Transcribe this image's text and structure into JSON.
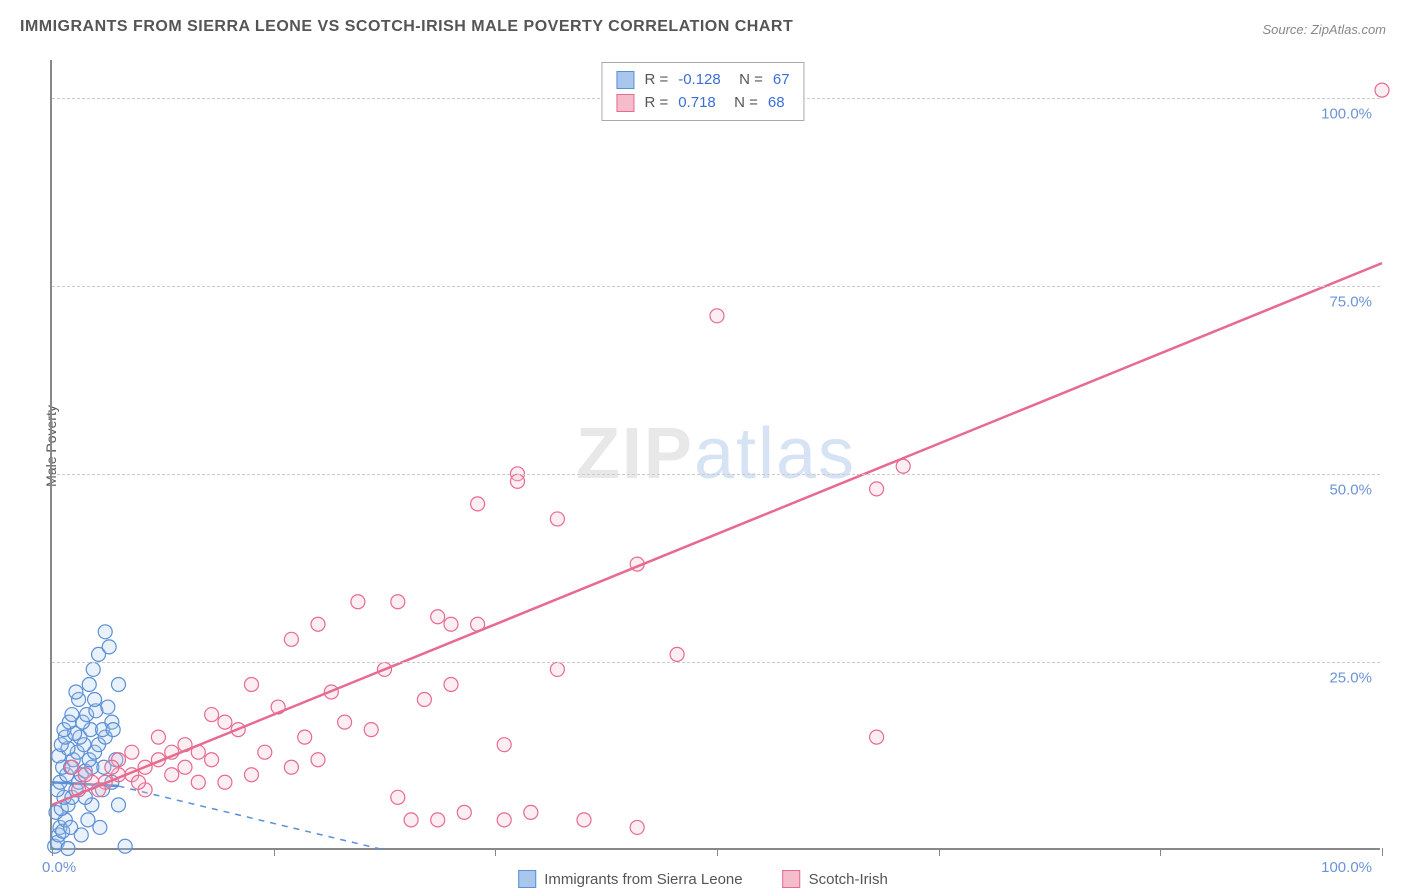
{
  "title": "IMMIGRANTS FROM SIERRA LEONE VS SCOTCH-IRISH MALE POVERTY CORRELATION CHART",
  "source": "Source: ZipAtlas.com",
  "ylabel": "Male Poverty",
  "watermark_a": "ZIP",
  "watermark_b": "atlas",
  "chart": {
    "type": "scatter",
    "xlim": [
      0,
      100
    ],
    "ylim": [
      0,
      105
    ],
    "yticks": [
      25,
      50,
      75,
      100
    ],
    "ytick_labels": [
      "25.0%",
      "50.0%",
      "75.0%",
      "100.0%"
    ],
    "xticks": [
      0,
      16.67,
      33.33,
      50,
      66.67,
      83.33,
      100
    ],
    "x_origin_label": "0.0%",
    "x_end_label": "100.0%",
    "grid_color": "#cccccc",
    "axis_color": "#888888",
    "background_color": "#ffffff",
    "marker_radius": 7,
    "series": [
      {
        "name": "Immigrants from Sierra Leone",
        "color_stroke": "#5b8fd6",
        "color_fill": "#a9c6ec",
        "R": "-0.128",
        "N": "67",
        "trend": {
          "x1": 0,
          "y1": 9,
          "x2": 5,
          "y2": 8.5,
          "dash_extend_x": 25,
          "dash_extend_y": 0
        },
        "points": [
          [
            0.2,
            0.5
          ],
          [
            0.4,
            1
          ],
          [
            0.5,
            2
          ],
          [
            0.6,
            3
          ],
          [
            0.8,
            2.5
          ],
          [
            1,
            4
          ],
          [
            0.3,
            5
          ],
          [
            0.7,
            5.5
          ],
          [
            1.2,
            6
          ],
          [
            0.9,
            7
          ],
          [
            1.5,
            7
          ],
          [
            0.4,
            8
          ],
          [
            1.8,
            8
          ],
          [
            2,
            9
          ],
          [
            0.6,
            9
          ],
          [
            1.1,
            10
          ],
          [
            2.2,
            10
          ],
          [
            2.5,
            10.5
          ],
          [
            0.8,
            11
          ],
          [
            1.4,
            11
          ],
          [
            3,
            11
          ],
          [
            1.6,
            12
          ],
          [
            2.8,
            12
          ],
          [
            0.5,
            12.5
          ],
          [
            1.9,
            13
          ],
          [
            3.2,
            13
          ],
          [
            1.2,
            13.5
          ],
          [
            2.4,
            14
          ],
          [
            0.7,
            14
          ],
          [
            3.5,
            14
          ],
          [
            1,
            15
          ],
          [
            2.1,
            15
          ],
          [
            4,
            15
          ],
          [
            1.7,
            15.5
          ],
          [
            2.9,
            16
          ],
          [
            0.9,
            16
          ],
          [
            3.8,
            16
          ],
          [
            1.3,
            17
          ],
          [
            2.3,
            17
          ],
          [
            4.5,
            17
          ],
          [
            2.6,
            18
          ],
          [
            1.5,
            18
          ],
          [
            3.3,
            18.5
          ],
          [
            2,
            20
          ],
          [
            4.2,
            19
          ],
          [
            1.8,
            21
          ],
          [
            2.8,
            22
          ],
          [
            3.1,
            24
          ],
          [
            3.5,
            26
          ],
          [
            4,
            29
          ],
          [
            1.2,
            0.2
          ],
          [
            2.2,
            2
          ],
          [
            5.5,
            0.5
          ],
          [
            3,
            6
          ],
          [
            3.8,
            8
          ],
          [
            4.5,
            9
          ],
          [
            5,
            6
          ],
          [
            4.8,
            12
          ],
          [
            3.6,
            3
          ],
          [
            2.7,
            4
          ],
          [
            1.4,
            3
          ],
          [
            5,
            22
          ],
          [
            4.3,
            27
          ],
          [
            3.2,
            20
          ],
          [
            2.5,
            7
          ],
          [
            4.6,
            16
          ],
          [
            3.9,
            11
          ]
        ]
      },
      {
        "name": "Scotch-Irish",
        "color_stroke": "#e76a8f",
        "color_fill": "#f5bccb",
        "R": "0.718",
        "N": "68",
        "trend": {
          "x1": 0,
          "y1": 6,
          "x2": 100,
          "y2": 78
        },
        "points": [
          [
            100,
            101
          ],
          [
            64,
            51
          ],
          [
            50,
            71
          ],
          [
            62,
            48
          ],
          [
            35,
            50
          ],
          [
            35,
            49
          ],
          [
            44,
            38
          ],
          [
            47,
            26
          ],
          [
            38,
            44
          ],
          [
            29,
            31
          ],
          [
            30,
            30
          ],
          [
            32,
            30
          ],
          [
            32,
            46
          ],
          [
            26,
            33
          ],
          [
            23,
            33
          ],
          [
            20,
            30
          ],
          [
            18,
            28
          ],
          [
            15,
            22
          ],
          [
            17,
            19
          ],
          [
            19,
            15
          ],
          [
            12,
            18
          ],
          [
            14,
            16
          ],
          [
            10,
            14
          ],
          [
            11,
            13
          ],
          [
            13,
            17
          ],
          [
            8,
            12
          ],
          [
            9,
            13
          ],
          [
            7,
            11
          ],
          [
            6,
            13
          ],
          [
            6,
            10
          ],
          [
            5,
            10
          ],
          [
            5,
            12
          ],
          [
            4,
            9
          ],
          [
            3,
            9
          ],
          [
            2,
            8
          ],
          [
            1.5,
            11
          ],
          [
            2.5,
            10
          ],
          [
            3.5,
            8
          ],
          [
            4.5,
            11
          ],
          [
            7,
            8
          ],
          [
            8,
            15
          ],
          [
            9,
            10
          ],
          [
            10,
            11
          ],
          [
            12,
            12
          ],
          [
            16,
            13
          ],
          [
            20,
            12
          ],
          [
            22,
            17
          ],
          [
            24,
            16
          ],
          [
            27,
            4
          ],
          [
            29,
            4
          ],
          [
            31,
            5
          ],
          [
            34,
            4
          ],
          [
            36,
            5
          ],
          [
            40,
            4
          ],
          [
            44,
            3
          ],
          [
            26,
            7
          ],
          [
            28,
            20
          ],
          [
            38,
            24
          ],
          [
            34,
            14
          ],
          [
            30,
            22
          ],
          [
            15,
            10
          ],
          [
            18,
            11
          ],
          [
            21,
            21
          ],
          [
            25,
            24
          ],
          [
            62,
            15
          ],
          [
            11,
            9
          ],
          [
            13,
            9
          ],
          [
            6.5,
            9
          ]
        ]
      }
    ]
  },
  "legend_bottom": [
    {
      "swatch_fill": "#a9c6ec",
      "swatch_stroke": "#5b8fd6",
      "label": "Immigrants from Sierra Leone"
    },
    {
      "swatch_fill": "#f5bccb",
      "swatch_stroke": "#e76a8f",
      "label": "Scotch-Irish"
    }
  ]
}
